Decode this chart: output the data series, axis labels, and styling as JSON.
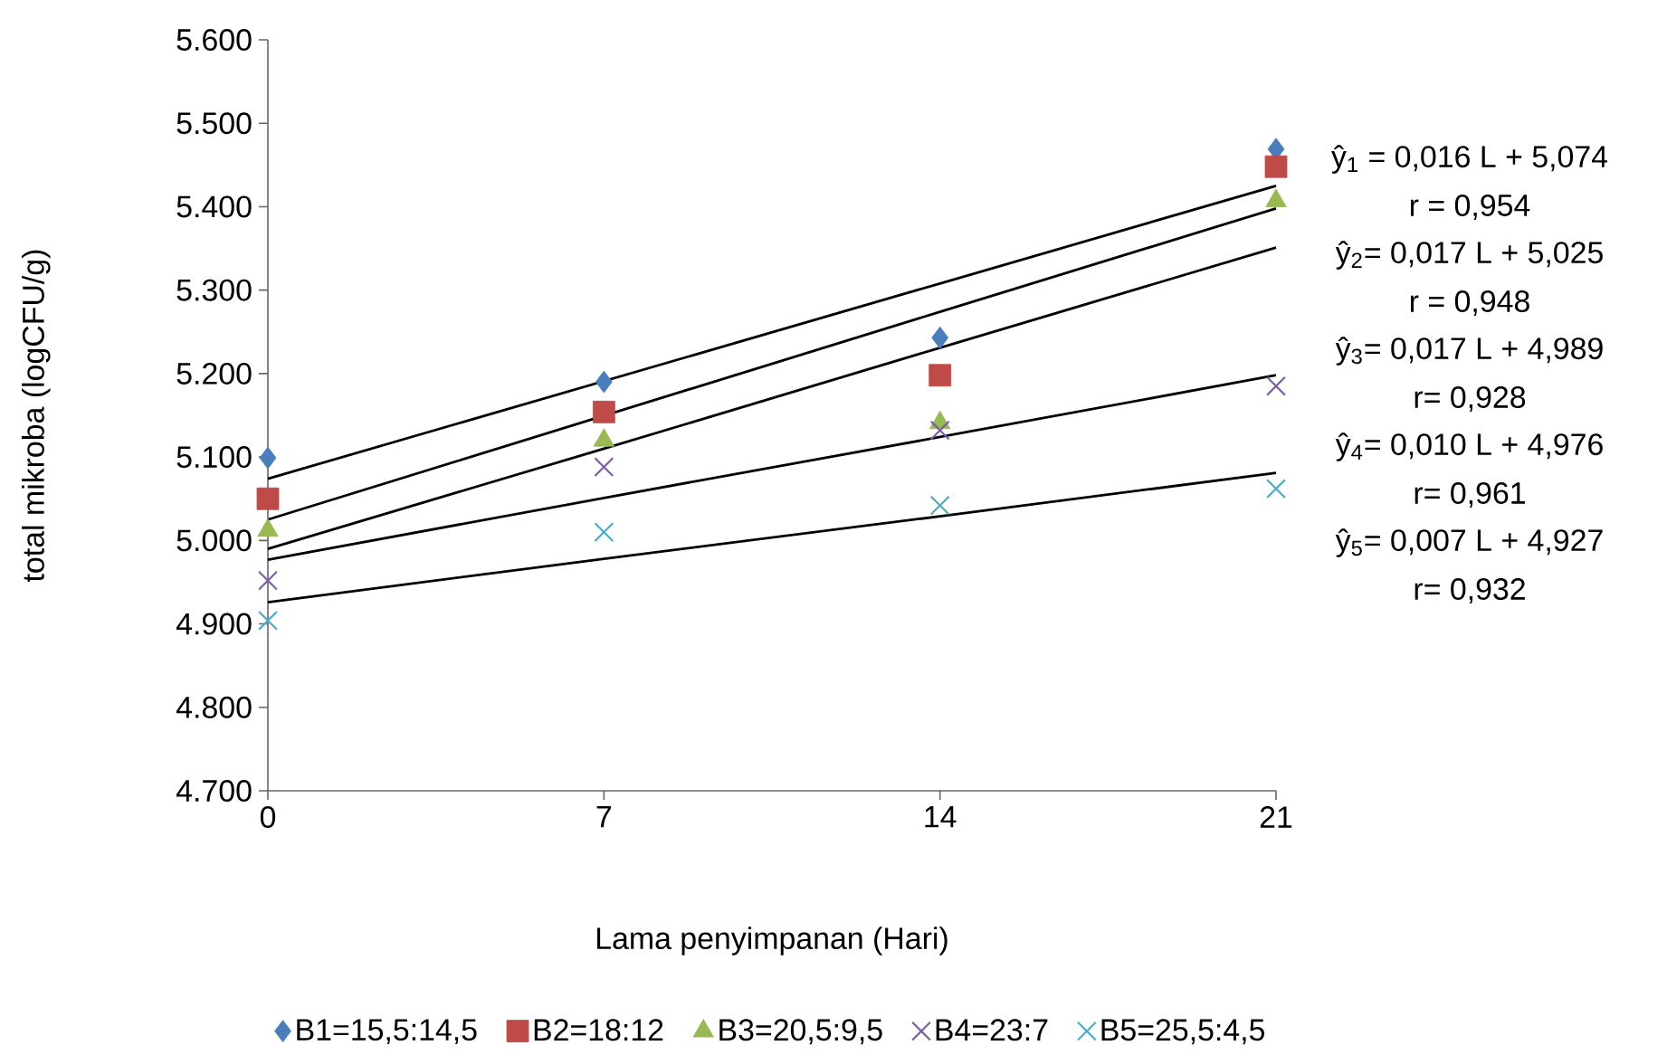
{
  "chart_data": {
    "type": "scatter",
    "xlabel": "Lama penyimpanan (Hari)",
    "ylabel": "total mikroba (logCFU/g)",
    "x": [
      0,
      7,
      14,
      21
    ],
    "series": [
      {
        "name": "B1=15,5:14,5",
        "color": "#4a7ebb",
        "marker": "diamond",
        "values": [
          5099,
          5190,
          5243,
          5469
        ]
      },
      {
        "name": "B2=18:12",
        "color": "#be4b48",
        "marker": "square",
        "values": [
          5050,
          5154,
          5198,
          5448
        ]
      },
      {
        "name": "B3=20,5:9,5",
        "color": "#98b954",
        "marker": "triangle",
        "values": [
          5012,
          5120,
          5141,
          5407
        ]
      },
      {
        "name": "B4=23:7",
        "color": "#7d60a0",
        "marker": "cross",
        "values": [
          4952,
          5088,
          5132,
          5185
        ]
      },
      {
        "name": "B5=25,5:4,5",
        "color": "#4bacc6",
        "marker": "cross",
        "values": [
          4904,
          5010,
          5042,
          5062
        ]
      },
      {
        "type": "line",
        "color": "#000000",
        "marker": "none",
        "values": [
          5074,
          5191,
          5308,
          5425
        ]
      },
      {
        "type": "line",
        "color": "#000000",
        "marker": "none",
        "values": [
          5025,
          null,
          5274,
          5398
        ]
      },
      {
        "type": "line",
        "color": "#000000",
        "marker": "none",
        "values": [
          4990,
          5110,
          5231,
          5351
        ]
      },
      {
        "type": "line",
        "color": "#000000",
        "marker": "none",
        "values": [
          4977,
          5051,
          5124,
          5198
        ]
      },
      {
        "type": "line",
        "color": "#000000",
        "marker": "none",
        "values": [
          4926,
          4978,
          5029,
          5081
        ]
      }
    ],
    "xlim": [
      0,
      21
    ],
    "xticks": [
      0,
      7,
      14,
      21
    ],
    "ylim": [
      4700,
      5600
    ],
    "yticks": [
      {
        "value": 4700,
        "label": "4.700"
      },
      {
        "value": 4800,
        "label": "4.800"
      },
      {
        "value": 4900,
        "label": "4.900"
      },
      {
        "value": 5000,
        "label": "5.000"
      },
      {
        "value": 5100,
        "label": "5.100"
      },
      {
        "value": 5200,
        "label": "5.200"
      },
      {
        "value": 5300,
        "label": "5.300"
      },
      {
        "value": 5400,
        "label": "5.400"
      },
      {
        "value": 5500,
        "label": "5.500"
      },
      {
        "value": 5600,
        "label": "5.600"
      }
    ],
    "legend": "bottom",
    "annotations": [
      "ŷ$_{1}$ = 0,016 L + 5,074",
      "r = 0,954",
      "ŷ$_{2}$= 0,017 L + 5,025",
      "r = 0,948",
      "ŷ$_{3}$= 0,017 L + 4,989",
      "r= 0,928",
      "ŷ$_{4}$= 0,010 L + 4,976",
      "r= 0,961",
      "ŷ$_{5}$= 0,007 L + 4,927",
      "r= 0,932"
    ]
  }
}
